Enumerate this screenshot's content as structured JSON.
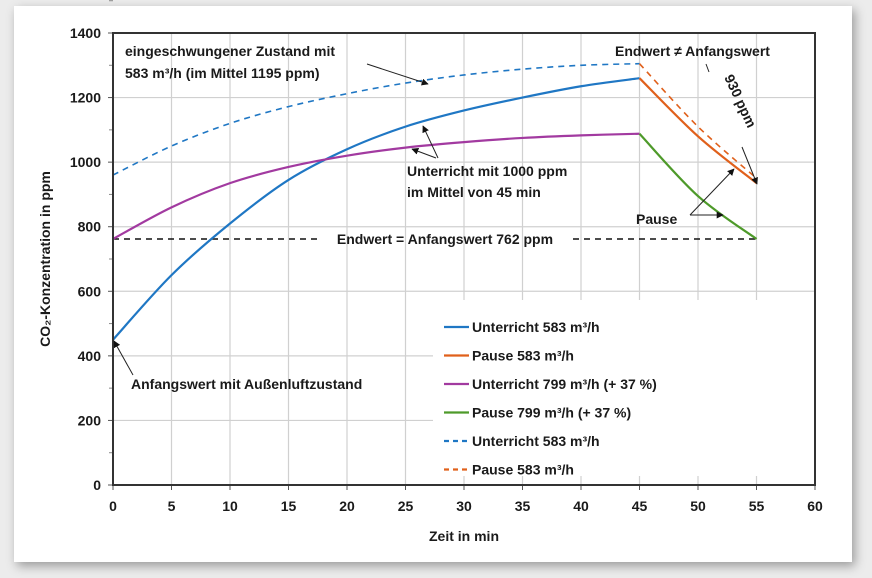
{
  "chart_data": {
    "type": "line",
    "xlabel": "Zeit in min",
    "ylabel": "CO₂-Konzentration in ppm",
    "xlim": [
      0,
      60
    ],
    "ylim": [
      0,
      1400
    ],
    "xticks": [
      "0",
      "5",
      "10",
      "15",
      "20",
      "25",
      "30",
      "35",
      "40",
      "45",
      "50",
      "55",
      "60"
    ],
    "yticks": [
      "0",
      "200",
      "400",
      "600",
      "800",
      "1000",
      "1200",
      "1400"
    ],
    "grid": true,
    "legend_position": "bottom-right",
    "series": [
      {
        "name": "Unterricht 583 m³/h",
        "color": "#1f77c4",
        "dash": false,
        "x": [
          0,
          5,
          10,
          15,
          20,
          25,
          30,
          35,
          40,
          45
        ],
        "y": [
          450,
          650,
          810,
          945,
          1040,
          1110,
          1160,
          1200,
          1235,
          1260
        ]
      },
      {
        "name": "Pause 583 m³/h",
        "color": "#e0601b",
        "dash": false,
        "x": [
          45,
          50,
          55
        ],
        "y": [
          1260,
          1080,
          935
        ]
      },
      {
        "name": "Unterricht 799 m³/h (+ 37 %)",
        "color": "#a23aa0",
        "dash": false,
        "x": [
          0,
          5,
          10,
          15,
          20,
          25,
          30,
          35,
          40,
          45
        ],
        "y": [
          762,
          860,
          935,
          985,
          1020,
          1045,
          1062,
          1075,
          1083,
          1088
        ]
      },
      {
        "name": "Pause 799 m³/h (+ 37 %)",
        "color": "#4e9a2a",
        "dash": false,
        "x": [
          45,
          50,
          55
        ],
        "y": [
          1088,
          895,
          762
        ]
      },
      {
        "name": "Unterricht 583 m³/h",
        "color": "#1f77c4",
        "dash": true,
        "x": [
          0,
          5,
          10,
          15,
          20,
          25,
          30,
          35,
          40,
          45
        ],
        "y": [
          960,
          1050,
          1120,
          1172,
          1212,
          1245,
          1270,
          1288,
          1300,
          1305
        ]
      },
      {
        "name": "Pause 583 m³/h",
        "color": "#e0601b",
        "dash": true,
        "x": [
          45,
          50,
          55
        ],
        "y": [
          1305,
          1110,
          950
        ]
      }
    ],
    "reference_line": {
      "y": 762,
      "label": "Endwert = Anfangswert 762 ppm"
    },
    "annotations": {
      "steady_state_1": "eingeschwungener Zustand mit",
      "steady_state_2": "583 m³/h (im Mittel 1195 ppm)",
      "end_neq_start": "Endwert ≠ Anfangswert",
      "ppm_930": "930 ppm",
      "lesson_1": "Unterricht mit 1000 ppm",
      "lesson_2": "im Mittel von 45 min",
      "pause": "Pause",
      "start_value": "Anfangswert mit Außenluftzustand"
    }
  }
}
